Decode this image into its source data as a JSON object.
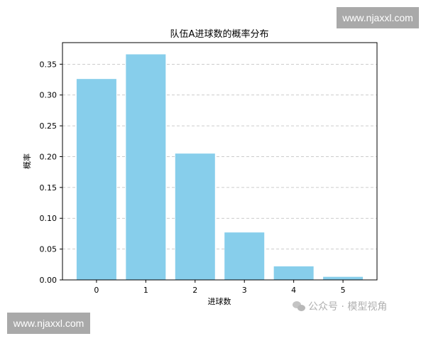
{
  "chart_data": {
    "type": "bar",
    "title": "队伍A进球数的概率分布",
    "xlabel": "进球数",
    "ylabel": "概率",
    "categories": [
      "0",
      "1",
      "2",
      "3",
      "4",
      "5"
    ],
    "values": [
      0.326,
      0.366,
      0.205,
      0.077,
      0.022,
      0.005
    ],
    "ylim": [
      0,
      0.385
    ],
    "yticks": [
      "0.00",
      "0.05",
      "0.10",
      "0.15",
      "0.20",
      "0.25",
      "0.30",
      "0.35"
    ],
    "grid": "y dashed",
    "bar_color": "#87ceeb"
  },
  "watermarks": {
    "top_right": "www.njaxxl.com",
    "bottom_left": "www.njaxxl.com",
    "wechat": "公众号 · 模型视角"
  }
}
